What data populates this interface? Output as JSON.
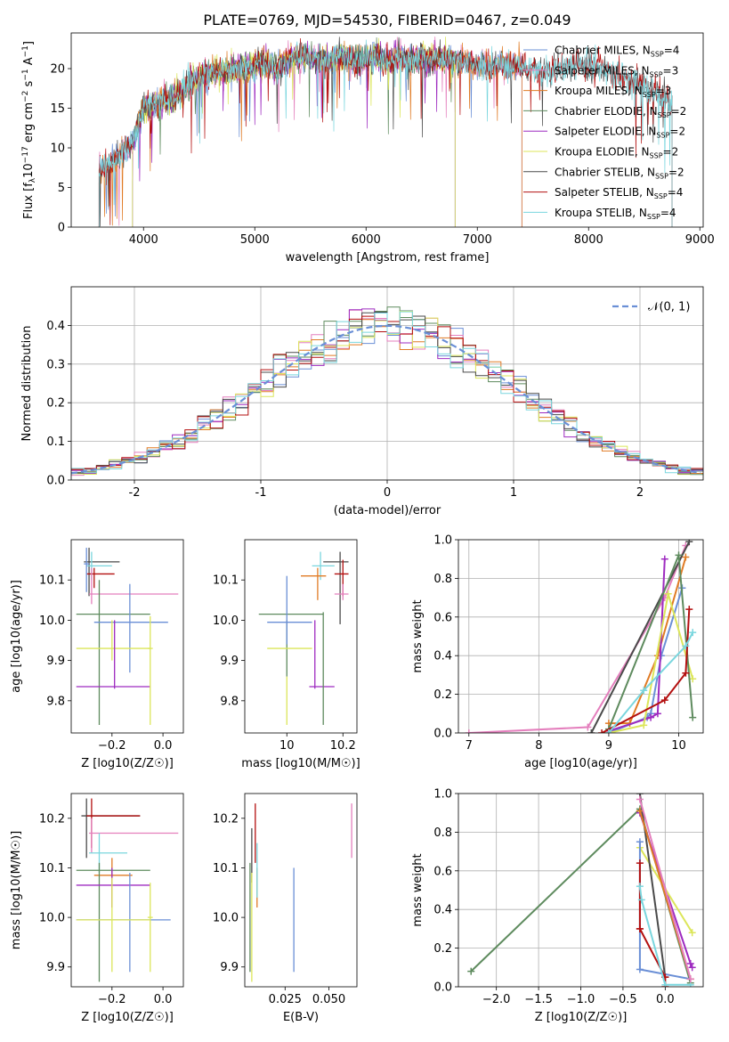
{
  "figure": {
    "title": "PLATE=0769, MJD=54530, FIBERID=0467, z=0.049"
  },
  "chart_data": [
    {
      "id": "spectrum",
      "type": "line",
      "xlabel": "wavelength [Angstrom, rest frame]",
      "ylabel": "Flux [f_λ10^-17 erg cm^-2 s^-1 A^-1]",
      "xlim": [
        3350,
        9030
      ],
      "ylim": [
        0,
        24.5
      ],
      "xticks": [
        4000,
        5000,
        6000,
        7000,
        8000,
        9000
      ],
      "yticks": [
        0,
        5,
        10,
        15,
        20
      ],
      "grid": false,
      "legend_position": "right",
      "series": [
        {
          "name": "Chabrier MILES, N_SSP=4",
          "color": "#6a8fd6",
          "x_range": [
            3600,
            7400
          ]
        },
        {
          "name": "Salpeter MILES, N_SSP=3",
          "color": "#e47fbd",
          "x_range": [
            3600,
            7400
          ]
        },
        {
          "name": "Kroupa MILES, N_SSP=3",
          "color": "#e07b25",
          "x_range": [
            3600,
            7400
          ]
        },
        {
          "name": "Chabrier ELODIE, N_SSP=2",
          "color": "#5e8b5e",
          "x_range": [
            3900,
            6800
          ]
        },
        {
          "name": "Salpeter ELODIE, N_SSP=2",
          "color": "#9e2bc0",
          "x_range": [
            3900,
            6800
          ]
        },
        {
          "name": "Kroupa ELODIE, N_SSP=2",
          "color": "#dce65a",
          "x_range": [
            3900,
            6800
          ]
        },
        {
          "name": "Chabrier STELIB, N_SSP=2",
          "color": "#4a4a4a",
          "x_range": [
            3600,
            8750
          ]
        },
        {
          "name": "Salpeter STELIB, N_SSP=4",
          "color": "#b30f0f",
          "x_range": [
            3600,
            8750
          ]
        },
        {
          "name": "Kroupa STELIB, N_SSP=4",
          "color": "#7ad6de",
          "x_range": [
            3600,
            8750
          ]
        }
      ],
      "continuum": {
        "x": [
          3600,
          3700,
          3800,
          3900,
          4000,
          4100,
          4200,
          4300,
          4400,
          4500,
          4600,
          4700,
          4800,
          4900,
          5000,
          5100,
          5200,
          5300,
          5400,
          5500,
          5600,
          5700,
          5800,
          5900,
          6000,
          6100,
          6200,
          6300,
          6400,
          6500,
          6600,
          6700,
          6800,
          6900,
          7000,
          7100,
          7200,
          7300,
          7400,
          7500,
          7600,
          7700,
          7800,
          7900,
          8000,
          8100,
          8200,
          8300,
          8400,
          8500,
          8600,
          8700,
          8750
        ],
        "y": [
          7.0,
          8.0,
          9.5,
          10.5,
          15.0,
          15.5,
          16.0,
          16.5,
          18.0,
          19.0,
          19.5,
          19.5,
          19.8,
          20.0,
          20.5,
          20.5,
          20.0,
          21.0,
          21.5,
          21.3,
          21.0,
          21.0,
          21.5,
          21.0,
          21.0,
          21.5,
          21.0,
          21.5,
          21.0,
          21.3,
          21.0,
          21.5,
          21.0,
          20.8,
          20.5,
          20.3,
          20.5,
          20.0,
          20.3,
          20.0,
          19.5,
          19.5,
          20.0,
          20.5,
          20.3,
          20.0,
          19.5,
          19.0,
          18.5,
          18.0,
          17.0,
          16.0,
          15.5
        ]
      }
    },
    {
      "id": "residuals",
      "type": "step",
      "xlabel": "(data-model)/error",
      "ylabel": "Normed distribution",
      "xlim": [
        -2.5,
        2.5
      ],
      "ylim": [
        0,
        0.5
      ],
      "xticks": [
        -2,
        -1,
        0,
        1,
        2
      ],
      "yticks": [
        0.0,
        0.1,
        0.2,
        0.3,
        0.4
      ],
      "grid": true,
      "legend": {
        "label": "𝒩(0, 1)",
        "position": "top-right"
      },
      "normal_curve": {
        "color": "#6a8fd6",
        "style": "dashed"
      }
    },
    {
      "id": "age-vs-Z",
      "type": "errorbar",
      "xlabel": "Z [log10(Z/Z☉)]",
      "ylabel": "age  [log10(age/yr)]",
      "xlim": [
        -0.36,
        0.08
      ],
      "ylim": [
        9.72,
        10.2
      ],
      "xticks": [
        -0.2,
        0.0
      ],
      "xticklabels": [
        "−0.2",
        "0.0"
      ],
      "yticks": [
        9.8,
        9.9,
        10.0,
        10.1
      ],
      "grid": false,
      "points": [
        {
          "x": -0.29,
          "y": 10.145,
          "xl": -0.31,
          "xh": -0.17,
          "yl": 10.06,
          "yh": 10.18,
          "color": "#4a4a4a"
        },
        {
          "x": -0.28,
          "y": 10.135,
          "xl": -0.3,
          "xh": -0.2,
          "yl": 10.1,
          "yh": 10.17,
          "color": "#7ad6de"
        },
        {
          "x": -0.27,
          "y": 10.115,
          "xl": -0.3,
          "xh": -0.19,
          "yl": 10.08,
          "yh": 10.13,
          "color": "#b30f0f"
        },
        {
          "x": -0.28,
          "y": 10.065,
          "xl": -0.29,
          "xh": 0.06,
          "yl": 10.04,
          "yh": 10.13,
          "color": "#e47fbd"
        },
        {
          "x": -0.25,
          "y": 10.015,
          "xl": -0.34,
          "xh": -0.05,
          "yl": 9.74,
          "yh": 10.1,
          "color": "#5e8b5e"
        },
        {
          "x": -0.13,
          "y": 9.995,
          "xl": -0.27,
          "xh": 0.02,
          "yl": 9.87,
          "yh": 10.09,
          "color": "#6a8fd6"
        },
        {
          "x": -0.2,
          "y": 9.93,
          "xl": -0.34,
          "xh": -0.05,
          "yl": 9.9,
          "yh": 10.0,
          "color": "#dce65a"
        },
        {
          "x": -0.19,
          "y": 9.835,
          "xl": -0.34,
          "xh": -0.05,
          "yl": 9.83,
          "yh": 10.0,
          "color": "#9e2bc0"
        },
        {
          "x": -0.05,
          "y": 9.93,
          "xl": -0.06,
          "xh": -0.04,
          "yl": 9.74,
          "yh": 10.01,
          "color": "#dce65a"
        },
        {
          "x": -0.3,
          "y": 10.14,
          "xl": -0.31,
          "xh": -0.29,
          "yl": 10.07,
          "yh": 10.18,
          "color": "#6a8fd6"
        }
      ]
    },
    {
      "id": "age-vs-mass",
      "type": "errorbar",
      "xlabel": "mass [log10(M/M☉)]",
      "xlim": [
        9.85,
        10.25
      ],
      "ylim": [
        9.72,
        10.2
      ],
      "xticks": [
        10.0,
        10.2
      ],
      "yticks": [
        9.8,
        9.9,
        10.0,
        10.1
      ],
      "grid": false,
      "points": [
        {
          "x": 10.19,
          "y": 10.145,
          "xl": 10.13,
          "xh": 10.22,
          "yl": 9.99,
          "yh": 10.17,
          "color": "#4a4a4a"
        },
        {
          "x": 10.12,
          "y": 10.135,
          "xl": 10.09,
          "xh": 10.17,
          "yl": 10.1,
          "yh": 10.17,
          "color": "#7ad6de"
        },
        {
          "x": 10.2,
          "y": 10.115,
          "xl": 10.17,
          "xh": 10.22,
          "yl": 10.06,
          "yh": 10.15,
          "color": "#b30f0f"
        },
        {
          "x": 10.2,
          "y": 10.065,
          "xl": 10.17,
          "xh": 10.22,
          "yl": 10.05,
          "yh": 10.09,
          "color": "#e47fbd"
        },
        {
          "x": 10.11,
          "y": 10.11,
          "xl": 10.05,
          "xh": 10.14,
          "yl": 10.05,
          "yh": 10.13,
          "color": "#e07b25"
        },
        {
          "x": 10.0,
          "y": 10.015,
          "xl": 9.9,
          "xh": 10.13,
          "yl": 9.86,
          "yh": 10.0,
          "color": "#5e8b5e"
        },
        {
          "x": 10.0,
          "y": 9.995,
          "xl": 9.93,
          "xh": 10.09,
          "yl": 9.94,
          "yh": 10.11,
          "color": "#6a8fd6"
        },
        {
          "x": 10.0,
          "y": 9.93,
          "xl": 9.93,
          "xh": 10.09,
          "yl": 9.74,
          "yh": 9.86,
          "color": "#dce65a"
        },
        {
          "x": 10.1,
          "y": 9.835,
          "xl": 10.08,
          "xh": 10.17,
          "yl": 9.83,
          "yh": 10.0,
          "color": "#9e2bc0"
        },
        {
          "x": 10.13,
          "y": 9.93,
          "xl": 10.13,
          "xh": 10.13,
          "yl": 9.74,
          "yh": 10.02,
          "color": "#5e8b5e"
        }
      ]
    },
    {
      "id": "massweight-vs-age",
      "type": "line",
      "xlabel": "age  [log10(age/yr)]",
      "ylabel": "mass weight",
      "xlim": [
        6.85,
        10.35
      ],
      "ylim": [
        0,
        1
      ],
      "xticks": [
        7,
        8,
        9,
        10
      ],
      "yticks": [
        0.0,
        0.2,
        0.4,
        0.6,
        0.8,
        1.0
      ],
      "grid": true,
      "series": [
        {
          "color": "#e47fbd",
          "x": [
            7.0,
            8.7,
            9.8,
            10.1
          ],
          "y": [
            0.0,
            0.03,
            0.7,
            0.97
          ]
        },
        {
          "color": "#6a8fd6",
          "x": [
            9.0,
            9.55,
            9.6,
            9.75,
            10.05
          ],
          "y": [
            0.0,
            0.08,
            0.1,
            0.4,
            0.75
          ]
        },
        {
          "color": "#e07b25",
          "x": [
            9.0,
            9.3,
            9.7,
            10.1
          ],
          "y": [
            0.05,
            0.05,
            0.4,
            0.91
          ]
        },
        {
          "color": "#4a4a4a",
          "x": [
            8.75,
            10.15
          ],
          "y": [
            0.0,
            0.99
          ]
        },
        {
          "color": "#9e2bc0",
          "x": [
            9.0,
            9.6,
            9.7,
            9.8
          ],
          "y": [
            0.01,
            0.08,
            0.1,
            0.9
          ]
        },
        {
          "color": "#dce65a",
          "x": [
            9.0,
            9.5,
            9.85,
            10.2
          ],
          "y": [
            0.0,
            0.04,
            0.72,
            0.28
          ]
        },
        {
          "color": "#5e8b5e",
          "x": [
            9.0,
            10.0,
            10.2
          ],
          "y": [
            0.02,
            0.92,
            0.08
          ]
        },
        {
          "color": "#b30f0f",
          "x": [
            8.9,
            9.8,
            10.1,
            10.15
          ],
          "y": [
            0.0,
            0.17,
            0.31,
            0.64
          ]
        },
        {
          "color": "#7ad6de",
          "x": [
            9.0,
            9.5,
            10.1,
            10.2
          ],
          "y": [
            0.0,
            0.22,
            0.45,
            0.52
          ]
        }
      ]
    },
    {
      "id": "mass-vs-Z",
      "type": "errorbar",
      "xlabel": "Z [log10(Z/Z☉)]",
      "ylabel": "mass [log10(M/M☉)]",
      "xlim": [
        -0.36,
        0.08
      ],
      "ylim": [
        9.86,
        10.25
      ],
      "xticks": [
        -0.2,
        0.0
      ],
      "xticklabels": [
        "−0.2",
        "0.0"
      ],
      "yticks": [
        9.9,
        10.0,
        10.1,
        10.2
      ],
      "grid": false,
      "points": [
        {
          "x": -0.3,
          "y": 10.205,
          "xl": -0.32,
          "xh": -0.09,
          "yl": 10.12,
          "yh": 10.24,
          "color": "#4a4a4a"
        },
        {
          "x": -0.28,
          "y": 10.205,
          "xl": -0.3,
          "xh": -0.09,
          "yl": 10.14,
          "yh": 10.24,
          "color": "#b30f0f"
        },
        {
          "x": -0.28,
          "y": 10.17,
          "xl": -0.29,
          "xh": 0.06,
          "yl": 10.13,
          "yh": 10.2,
          "color": "#e47fbd"
        },
        {
          "x": -0.25,
          "y": 10.13,
          "xl": -0.29,
          "xh": -0.14,
          "yl": 10.09,
          "yh": 10.17,
          "color": "#7ad6de"
        },
        {
          "x": -0.2,
          "y": 10.085,
          "xl": -0.27,
          "xh": -0.12,
          "yl": 10.02,
          "yh": 10.12,
          "color": "#e07b25"
        },
        {
          "x": -0.25,
          "y": 10.095,
          "xl": -0.34,
          "xh": -0.05,
          "yl": 9.87,
          "yh": 10.11,
          "color": "#5e8b5e"
        },
        {
          "x": -0.2,
          "y": 10.065,
          "xl": -0.34,
          "xh": -0.05,
          "yl": 10.02,
          "yh": 10.1,
          "color": "#9e2bc0"
        },
        {
          "x": -0.13,
          "y": 9.995,
          "xl": -0.34,
          "xh": 0.03,
          "yl": 9.89,
          "yh": 10.09,
          "color": "#6a8fd6"
        },
        {
          "x": -0.2,
          "y": 9.995,
          "xl": -0.34,
          "xh": -0.05,
          "yl": 9.89,
          "yh": 10.08,
          "color": "#dce65a"
        },
        {
          "x": -0.05,
          "y": 10.0,
          "xl": -0.06,
          "xh": -0.04,
          "yl": 9.89,
          "yh": 10.07,
          "color": "#dce65a"
        }
      ]
    },
    {
      "id": "mass-vs-ebv",
      "type": "errorbar",
      "xlabel": "E(B-V)",
      "xlim": [
        0.002,
        0.066
      ],
      "ylim": [
        9.86,
        10.25
      ],
      "xticks": [
        0.025,
        0.05
      ],
      "xticklabels": [
        "0.025",
        "0.050"
      ],
      "yticks": [
        9.9,
        10.0,
        10.1,
        10.2
      ],
      "grid": false,
      "points": [
        {
          "x": 0.008,
          "y": 10.17,
          "xl": 0.008,
          "xh": 0.008,
          "yl": 10.11,
          "yh": 10.23,
          "color": "#b30f0f"
        },
        {
          "x": 0.006,
          "y": 10.13,
          "xl": 0.006,
          "xh": 0.006,
          "yl": 10.07,
          "yh": 10.18,
          "color": "#4a4a4a"
        },
        {
          "x": 0.009,
          "y": 10.06,
          "xl": 0.009,
          "xh": 0.009,
          "yl": 10.02,
          "yh": 10.1,
          "color": "#e07b25"
        },
        {
          "x": 0.005,
          "y": 10.05,
          "xl": 0.005,
          "xh": 0.005,
          "yl": 9.89,
          "yh": 10.11,
          "color": "#5e8b5e"
        },
        {
          "x": 0.006,
          "y": 10.05,
          "xl": 0.006,
          "xh": 0.006,
          "yl": 9.87,
          "yh": 10.09,
          "color": "#dce65a"
        },
        {
          "x": 0.009,
          "y": 10.08,
          "xl": 0.009,
          "xh": 0.009,
          "yl": 10.04,
          "yh": 10.15,
          "color": "#7ad6de"
        },
        {
          "x": 0.03,
          "y": 9.995,
          "xl": 0.03,
          "xh": 0.03,
          "yl": 9.89,
          "yh": 10.1,
          "color": "#6a8fd6"
        },
        {
          "x": 0.063,
          "y": 10.17,
          "xl": 0.063,
          "xh": 0.063,
          "yl": 10.12,
          "yh": 10.23,
          "color": "#e47fbd"
        }
      ]
    },
    {
      "id": "massweight-vs-Z",
      "type": "line",
      "xlabel": "Z [log10(Z/Z☉)]",
      "ylabel": "mass weight",
      "xlim": [
        -2.45,
        0.45
      ],
      "ylim": [
        0,
        1
      ],
      "xticks": [
        -2.0,
        -1.5,
        -1.0,
        -0.5,
        0.0
      ],
      "xticklabels": [
        "−2.0",
        "−1.5",
        "−1.0",
        "−0.5",
        "0.0"
      ],
      "yticks": [
        0.0,
        0.2,
        0.4,
        0.6,
        0.8,
        1.0
      ],
      "grid": true,
      "series": [
        {
          "color": "#5e8b5e",
          "x": [
            -2.3,
            -0.3,
            0.3
          ],
          "y": [
            0.08,
            0.92,
            0.02
          ]
        },
        {
          "color": "#9e2bc0",
          "x": [
            -0.3,
            0.3,
            0.32
          ],
          "y": [
            0.9,
            0.12,
            0.1
          ]
        },
        {
          "color": "#dce65a",
          "x": [
            -0.3,
            0.32
          ],
          "y": [
            0.72,
            0.28
          ]
        },
        {
          "color": "#4a4a4a",
          "x": [
            -0.3,
            0.0
          ],
          "y": [
            1.0,
            0.05
          ]
        },
        {
          "color": "#6a8fd6",
          "x": [
            -0.3,
            -0.3,
            0.3
          ],
          "y": [
            0.75,
            0.09,
            0.04
          ]
        },
        {
          "color": "#b30f0f",
          "x": [
            -0.3,
            -0.3,
            -0.3,
            0.0,
            0.0
          ],
          "y": [
            0.64,
            0.3,
            0.3,
            0.05,
            0.0
          ]
        },
        {
          "color": "#7ad6de",
          "x": [
            -0.3,
            -0.28,
            0.0,
            0.3
          ],
          "y": [
            0.52,
            0.45,
            0.01,
            0.01
          ]
        },
        {
          "color": "#e07b25",
          "x": [
            -0.3,
            0.3
          ],
          "y": [
            0.91,
            0.04
          ]
        },
        {
          "color": "#e47fbd",
          "x": [
            -0.3,
            0.3
          ],
          "y": [
            0.97,
            0.04
          ]
        }
      ]
    }
  ]
}
